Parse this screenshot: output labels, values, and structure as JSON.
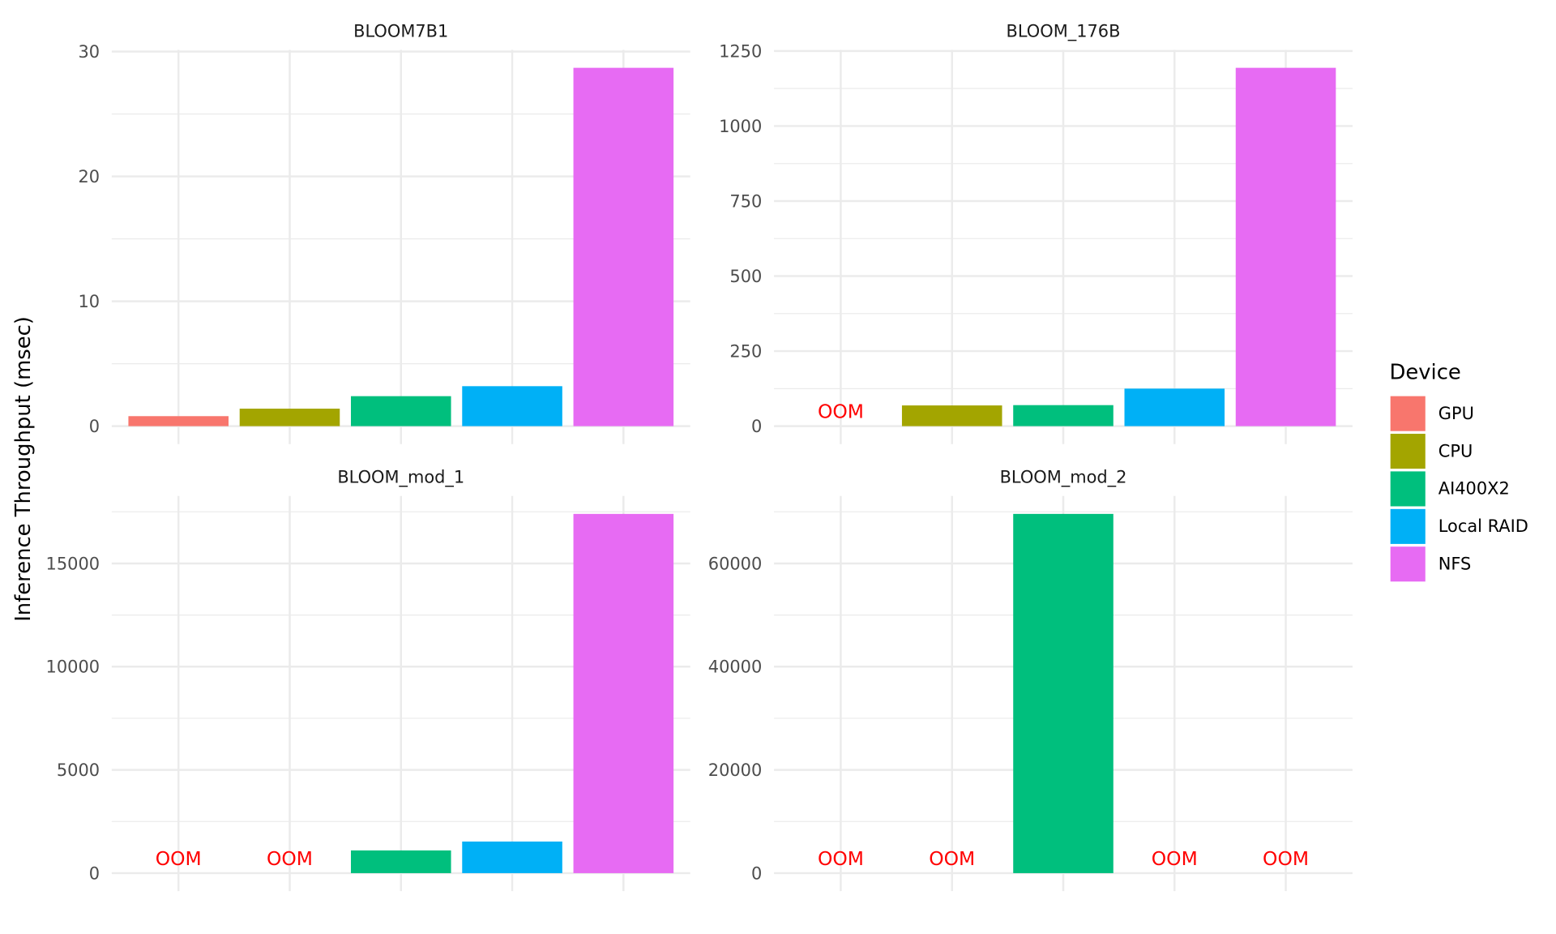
{
  "chart_data": {
    "type": "bar",
    "ylabel": "Inference Throughput (msec)",
    "xlabel": "",
    "legend": {
      "title": "Device",
      "placement": "right"
    },
    "grid": true,
    "categories": [
      "GPU",
      "CPU",
      "AI400X2",
      "Local RAID",
      "NFS"
    ],
    "colors": {
      "GPU": "#F8766D",
      "CPU": "#A3A500",
      "AI400X2": "#00BF7D",
      "Local RAID": "#00B0F6",
      "NFS": "#E76BF3"
    },
    "missing_label": "OOM",
    "panels": [
      {
        "title": "BLOOM7B1",
        "ticks": [
          0,
          10,
          20,
          30
        ],
        "tick_labels": [
          "0",
          "10",
          "20",
          "30"
        ],
        "values": [
          0.8,
          1.4,
          2.4,
          3.2,
          28.7
        ]
      },
      {
        "title": "BLOOM_176B",
        "ticks": [
          0,
          250,
          500,
          750,
          1000,
          1250
        ],
        "tick_labels": [
          "0",
          "250",
          "500",
          "750",
          "1000",
          "1250"
        ],
        "values": [
          null,
          69,
          70,
          125,
          1194
        ]
      },
      {
        "title": "BLOOM_mod_1",
        "ticks": [
          0,
          5000,
          10000,
          15000
        ],
        "tick_labels": [
          "0",
          "5000",
          "10000",
          "15000"
        ],
        "values": [
          null,
          null,
          1100,
          1530,
          17400
        ]
      },
      {
        "title": "BLOOM_mod_2",
        "ticks": [
          0,
          20000,
          40000,
          60000
        ],
        "tick_labels": [
          "0",
          "20000",
          "40000",
          "60000"
        ],
        "values": [
          null,
          null,
          69600,
          null,
          null
        ]
      }
    ]
  }
}
